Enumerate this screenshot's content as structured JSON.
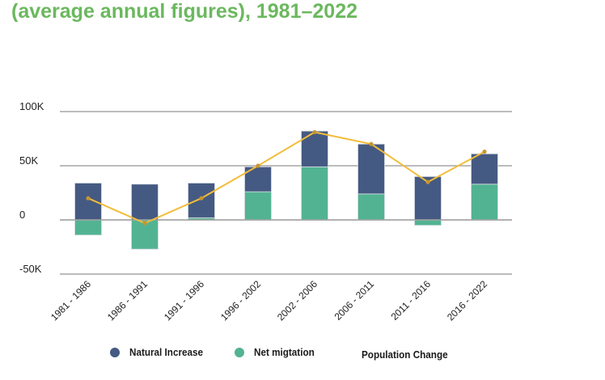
{
  "title": "(average annual figures), 1981–2022",
  "colors": {
    "title": "#6bb85e",
    "natural_increase": "#455a82",
    "net_migration": "#52b392",
    "population_change": "#f2bd3a",
    "population_change_marker": "#c9952f",
    "gridline": "#a6a6a6"
  },
  "legend": [
    {
      "label": "Natural Increase",
      "color": "#455a82",
      "marker": "circle"
    },
    {
      "label": "Net migtation",
      "color": "#52b392",
      "marker": "circle"
    },
    {
      "label": "Population Change",
      "color": "#f2bd3a",
      "marker": "none"
    }
  ],
  "chart_data": {
    "type": "bar",
    "subtype": "stacked bar with line overlay",
    "title": "(average annual figures), 1981–2022",
    "xlabel": "",
    "ylabel": "",
    "categories": [
      "1981 - 1986",
      "1986 - 1991",
      "1991 - 1996",
      "1996 - 2002",
      "2002 - 2006",
      "2006 - 2011",
      "2011 - 2016",
      "2016 - 2022"
    ],
    "series": [
      {
        "name": "Natural Increase",
        "type": "bar",
        "values": [
          34000,
          33000,
          32000,
          23000,
          33000,
          46000,
          40000,
          28000
        ]
      },
      {
        "name": "Net migtation",
        "type": "bar",
        "values": [
          -14000,
          -27000,
          2000,
          26000,
          49000,
          24000,
          -5000,
          33000
        ]
      },
      {
        "name": "Population Change",
        "type": "line",
        "values": [
          20000,
          -3000,
          20000,
          50000,
          81000,
          70000,
          35000,
          63000
        ]
      }
    ],
    "yticks": [
      {
        "value": 100000,
        "label": "100K"
      },
      {
        "value": 50000,
        "label": "50K"
      },
      {
        "value": 0,
        "label": "0"
      },
      {
        "value": -50000,
        "label": "-50K"
      }
    ],
    "ylim": [
      -50000,
      100000
    ],
    "grid": true,
    "legend_position": "bottom"
  }
}
